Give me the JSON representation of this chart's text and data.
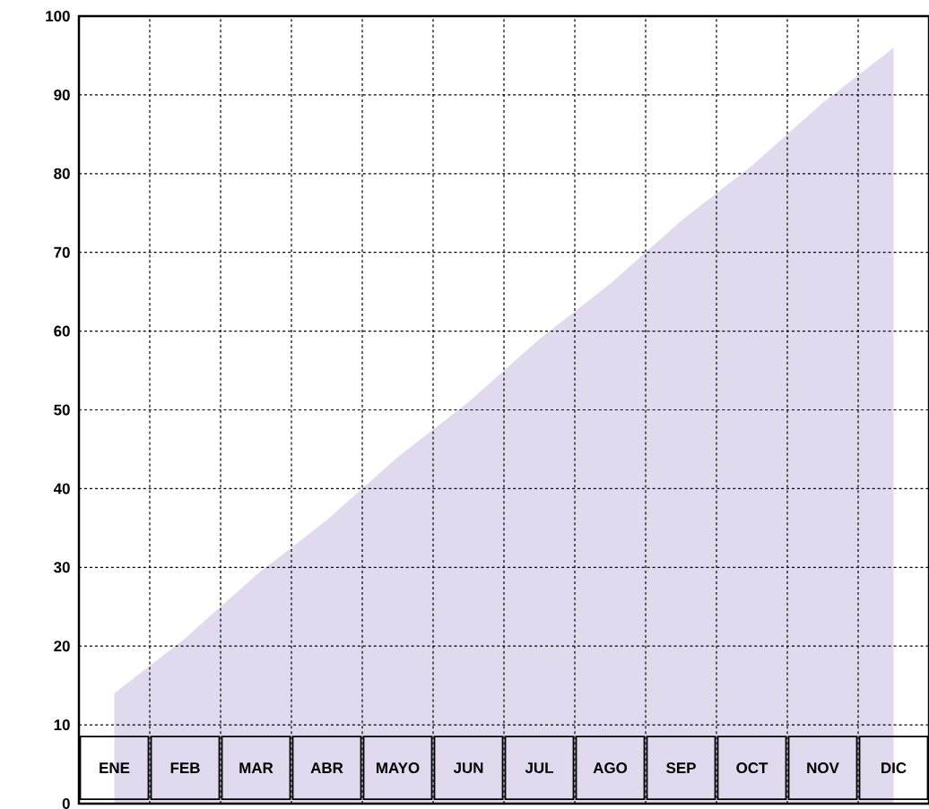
{
  "chart_data": {
    "type": "area",
    "categories": [
      "ENE",
      "FEB",
      "MAR",
      "ABR",
      "MAYO",
      "JUN",
      "JUL",
      "AGO",
      "SEP",
      "OCT",
      "NOV",
      "DIC"
    ],
    "values": [
      14,
      21,
      29,
      36,
      44,
      51,
      59,
      66,
      74,
      81,
      89,
      96
    ],
    "color": "#e1d9ee",
    "ylim": [
      0,
      100
    ],
    "yticks": [
      0,
      10,
      20,
      30,
      40,
      50,
      60,
      70,
      80,
      90,
      100
    ],
    "grid": true
  }
}
